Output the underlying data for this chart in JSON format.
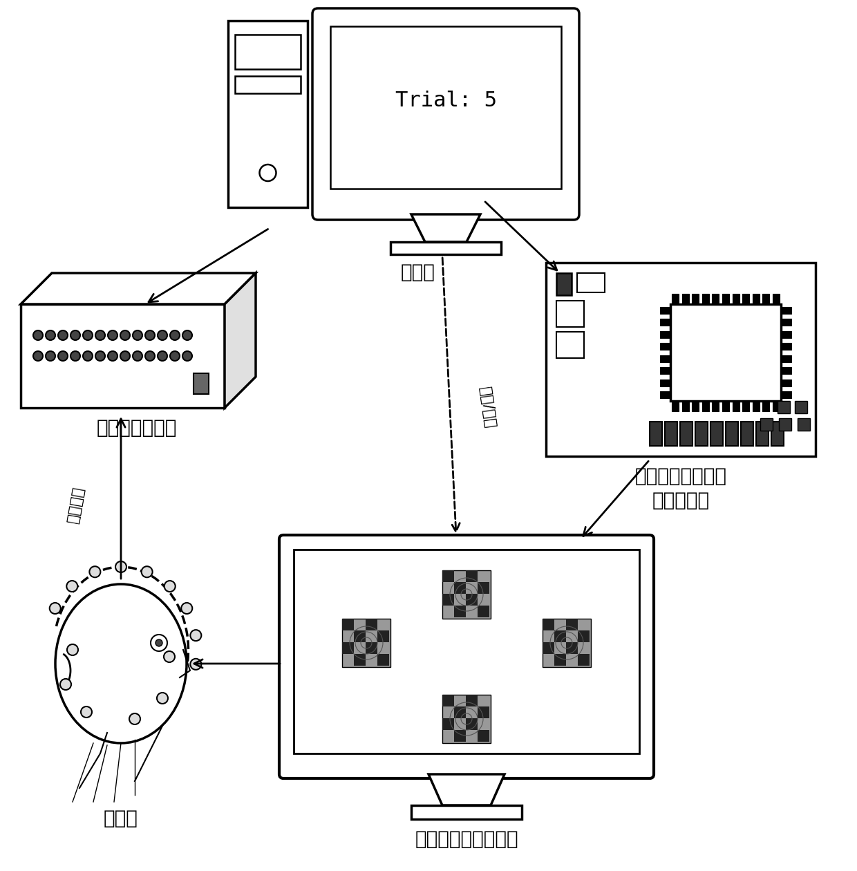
{
  "background_color": "#ffffff",
  "line_color": "#000000",
  "computer_label": "计算机",
  "amplifier_label": "脑电采集放大器",
  "fpga_label_line1": "现场可编程逻辑门",
  "fpga_label_line2": "阵列控制板",
  "display_label": "视觉刺激单元显示器",
  "user_label": "使用者",
  "monitor_text": "Trial: 5",
  "dashed_label": "开始/结束",
  "eeg_label": "脑电信号",
  "font_size_label": 20,
  "font_size_monitor": 22,
  "font_size_rotated": 16
}
